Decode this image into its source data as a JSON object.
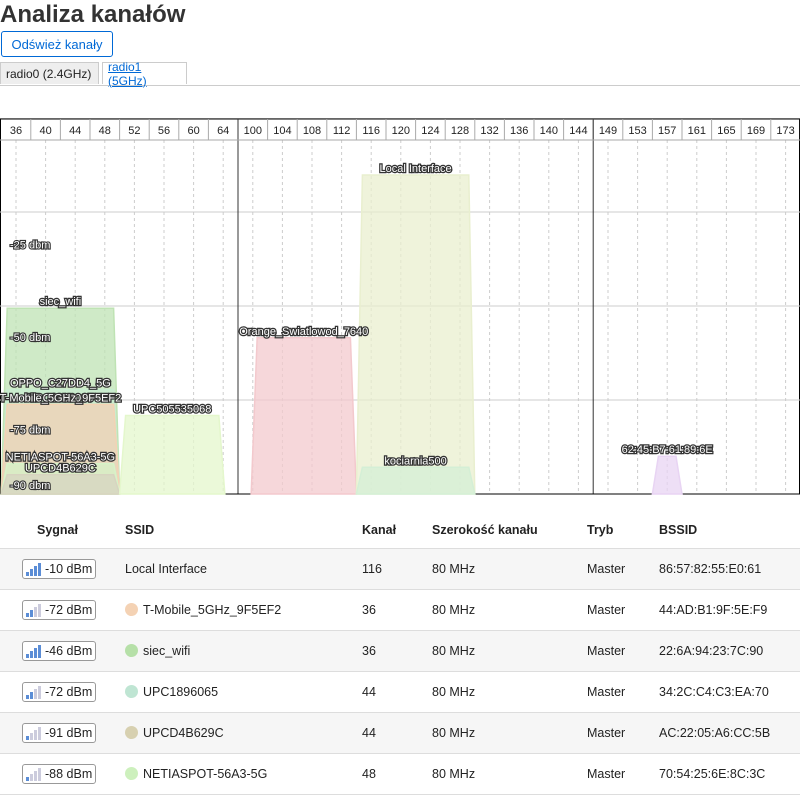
{
  "page": {
    "title": "Analiza kanałów",
    "refresh_label": "Odśwież kanały"
  },
  "tabs": [
    {
      "label": "radio0 (2.4GHz)",
      "active": true
    },
    {
      "label": "radio1 (5GHz)",
      "active": false
    }
  ],
  "chart_data": {
    "type": "area",
    "channels": [
      36,
      40,
      44,
      48,
      52,
      56,
      60,
      64,
      100,
      104,
      108,
      112,
      116,
      120,
      124,
      128,
      132,
      136,
      140,
      144,
      149,
      153,
      157,
      161,
      165,
      169,
      173
    ],
    "y_labels": [
      {
        "dbm": -25,
        "label": "-25 dbm"
      },
      {
        "dbm": -50,
        "label": "-50 dbm"
      },
      {
        "dbm": -75,
        "label": "-75 dbm"
      },
      {
        "dbm": -90,
        "label": "-90 dbm"
      }
    ],
    "networks": [
      {
        "ssid": "siec_wifi",
        "from": 34,
        "to": 50,
        "signal": -46,
        "color": "#bfe3b4"
      },
      {
        "ssid": "OPPO_C27DD4_5G",
        "from": 34,
        "to": 50,
        "signal": -68,
        "color": "#c8ecd0"
      },
      {
        "ssid": "UPC1896065",
        "from": 34,
        "to": 50,
        "signal": -72,
        "color": "#bfe5d3"
      },
      {
        "ssid": "T-Mobile_5GHz_9F5EF2",
        "from": 34,
        "to": 50,
        "signal": -72,
        "color": "#f4d2b4"
      },
      {
        "ssid": "NETIASPOT-56A3-5G",
        "from": 34,
        "to": 50,
        "signal": -88,
        "color": "#d6f3c8"
      },
      {
        "ssid": "UPCD4B629C",
        "from": 34,
        "to": 50,
        "signal": -91,
        "color": "#d7d4c0"
      },
      {
        "ssid": "UPC505535068",
        "from": 50,
        "to": 66,
        "signal": -75,
        "color": "#e4f7cc"
      },
      {
        "ssid": "Orange_Swiatlowod_7640",
        "from": 98,
        "to": 114,
        "signal": -54,
        "color": "#f3c9cd"
      },
      {
        "ssid": "Local Interface",
        "from": 114,
        "to": 130,
        "signal": -10,
        "color": "#e9efcf"
      },
      {
        "ssid": "kociarnia500",
        "from": 114,
        "to": 130,
        "signal": -89,
        "color": "#d4efd6"
      },
      {
        "ssid": "62:45:B7:61:89:6E",
        "from": 155,
        "to": 159,
        "signal": -86,
        "color": "#e8d4f3"
      }
    ]
  },
  "table": {
    "headers": {
      "signal": "Sygnał",
      "ssid": "SSID",
      "channel": "Kanał",
      "width": "Szerokość kanału",
      "mode": "Tryb",
      "bssid": "BSSID"
    },
    "rows": [
      {
        "signal": "-10 dBm",
        "bars": 4,
        "ssid": "Local Interface",
        "color": "",
        "channel": "116",
        "width": "80 MHz",
        "mode": "Master",
        "bssid": "86:57:82:55:E0:61"
      },
      {
        "signal": "-72 dBm",
        "bars": 2,
        "ssid": "T-Mobile_5GHz_9F5EF2",
        "color": "#f4d2b4",
        "channel": "36",
        "width": "80 MHz",
        "mode": "Master",
        "bssid": "44:AD:B1:9F:5E:F9"
      },
      {
        "signal": "-46 dBm",
        "bars": 4,
        "ssid": "siec_wifi",
        "color": "#b6e0a8",
        "channel": "36",
        "width": "80 MHz",
        "mode": "Master",
        "bssid": "22:6A:94:23:7C:90"
      },
      {
        "signal": "-72 dBm",
        "bars": 2,
        "ssid": "UPC1896065",
        "color": "#bfe5d3",
        "channel": "44",
        "width": "80 MHz",
        "mode": "Master",
        "bssid": "34:2C:C4:C3:EA:70"
      },
      {
        "signal": "-91 dBm",
        "bars": 1,
        "ssid": "UPCD4B629C",
        "color": "#d7d0b0",
        "channel": "44",
        "width": "80 MHz",
        "mode": "Master",
        "bssid": "AC:22:05:A6:CC:5B"
      },
      {
        "signal": "-88 dBm",
        "bars": 1,
        "ssid": "NETIASPOT-56A3-5G",
        "color": "#cdf0bd",
        "channel": "48",
        "width": "80 MHz",
        "mode": "Master",
        "bssid": "70:54:25:6E:8C:3C"
      }
    ]
  }
}
